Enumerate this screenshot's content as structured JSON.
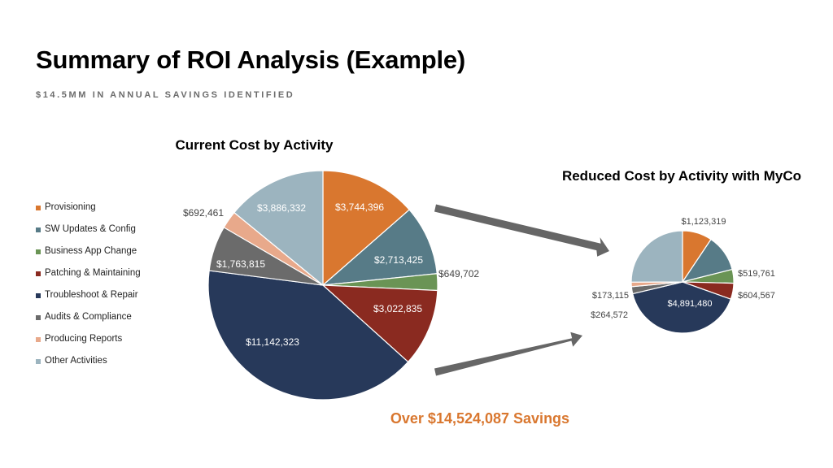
{
  "slide": {
    "title": "Summary of ROI Analysis (Example)",
    "subtitle": "$14.5MM IN ANNUAL SAVINGS IDENTIFIED",
    "savings_text": "Over $14,524,087 Savings"
  },
  "legend": [
    {
      "label": "Provisioning",
      "color": "#d9772f"
    },
    {
      "label": "SW Updates & Config",
      "color": "#577b87"
    },
    {
      "label": "Business App Change",
      "color": "#6a9455"
    },
    {
      "label": "Patching & Maintaining",
      "color": "#8a2a20"
    },
    {
      "label": "Troubleshoot & Repair",
      "color": "#27395a"
    },
    {
      "label": "Audits & Compliance",
      "color": "#6b6b6b"
    },
    {
      "label": "Producing Reports",
      "color": "#e8a98b"
    },
    {
      "label": "Other Activities",
      "color": "#9cb4bf"
    }
  ],
  "chart_data": [
    {
      "type": "pie",
      "title": "Current Cost by Activity",
      "categories": [
        "Provisioning",
        "SW Updates & Config",
        "Business App Change",
        "Patching & Maintaining",
        "Troubleshoot & Repair",
        "Audits & Compliance",
        "Producing Reports",
        "Other Activities"
      ],
      "values": [
        3744396,
        2713425,
        649702,
        3022835,
        11142323,
        1763815,
        692461,
        3886332
      ],
      "labels": [
        "$3,744,396",
        "$2,713,425",
        "$649,702",
        "$3,022,835",
        "$11,142,323",
        "$1,763,815",
        "$692,461",
        "$3,886,332"
      ]
    },
    {
      "type": "pie",
      "title": "Reduced Cost by Activity with MyCo",
      "categories": [
        "Provisioning",
        "SW Updates & Config",
        "Business App Change",
        "Patching & Maintaining",
        "Troubleshoot & Repair",
        "Audits & Compliance",
        "Producing Reports",
        "Other Activities"
      ],
      "values": [
        1123319,
        1400000,
        519761,
        604567,
        4891480,
        264572,
        173115,
        3000000
      ],
      "labels": [
        "$1,123,319",
        "",
        "$519,761",
        "$604,567",
        "$4,891,480",
        "$264,572",
        "$173,115",
        ""
      ]
    }
  ]
}
